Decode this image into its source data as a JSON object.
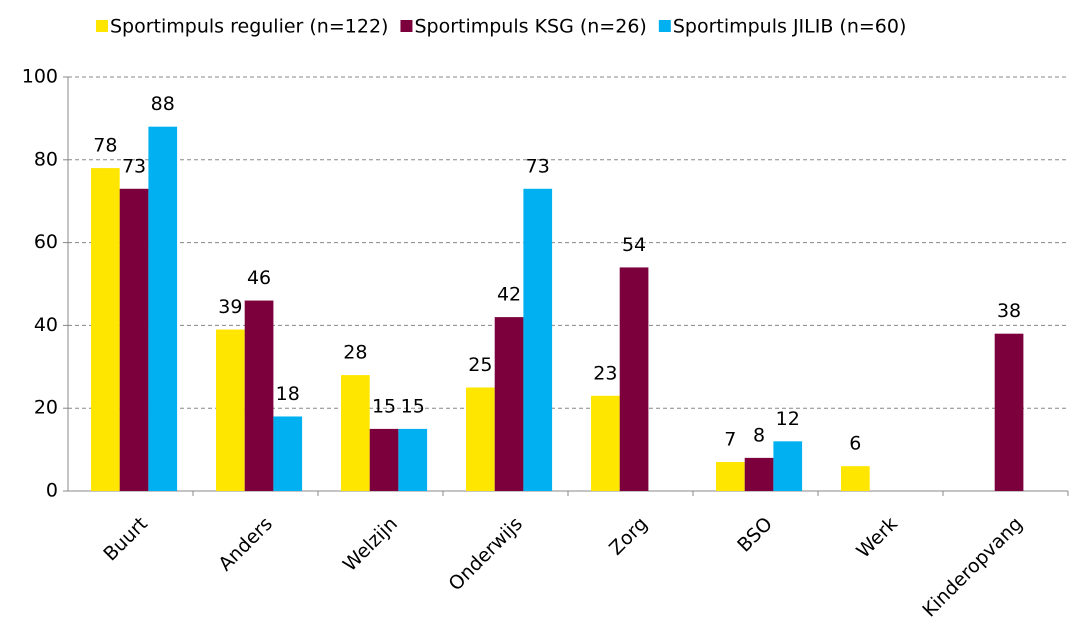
{
  "chart_data": {
    "type": "bar",
    "categories": [
      "Buurt",
      "Anders",
      "Welzijn",
      "Onderwijs",
      "Zorg",
      "BSO",
      "Werk",
      "Kinderopvang"
    ],
    "series": [
      {
        "name": "Sportimpuls regulier (n=122)",
        "color": "#ffe600",
        "values": [
          78,
          39,
          28,
          25,
          23,
          7,
          6,
          null
        ]
      },
      {
        "name": "Sportimpuls KSG (n=26)",
        "color": "#7b003b",
        "values": [
          73,
          46,
          15,
          42,
          54,
          8,
          null,
          38
        ]
      },
      {
        "name": "Sportimpuls JILIB (n=60)",
        "color": "#00b0f0",
        "values": [
          88,
          18,
          15,
          73,
          null,
          12,
          null,
          null
        ]
      }
    ],
    "ylim": [
      0,
      100
    ],
    "yticks": [
      0,
      20,
      40,
      60,
      80,
      100
    ],
    "grid": true,
    "legend": "top"
  }
}
